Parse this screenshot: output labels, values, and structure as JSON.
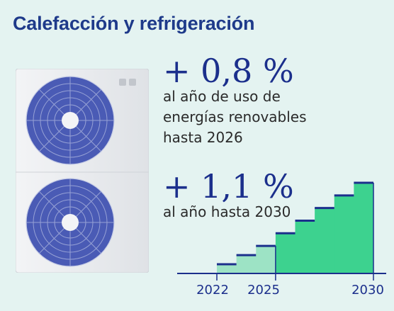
{
  "title": "Calefacción y refrigeración",
  "stats": [
    {
      "value": "+ 0,8 %",
      "description": "al año de uso de energías renovables hasta 2026"
    },
    {
      "value": "+ 1,1 %",
      "description": "al año hasta 2030"
    }
  ],
  "image": {
    "icon": "heat-pump-outdoor-unit",
    "fan_color": "#4a5bb5"
  },
  "chart_data": {
    "type": "step",
    "x": [
      2022,
      2023,
      2024,
      2025,
      2026,
      2027,
      2028,
      2029,
      2030
    ],
    "y": [
      0,
      0.8,
      1.6,
      2.4,
      3.5,
      4.6,
      5.7,
      6.8,
      7.9
    ],
    "tick_labels": [
      "2022",
      "2025",
      "2030"
    ],
    "colors": {
      "period_1": "#9de3c5",
      "period_2": "#3dd28f",
      "step_line": "#1b2f8c"
    }
  }
}
